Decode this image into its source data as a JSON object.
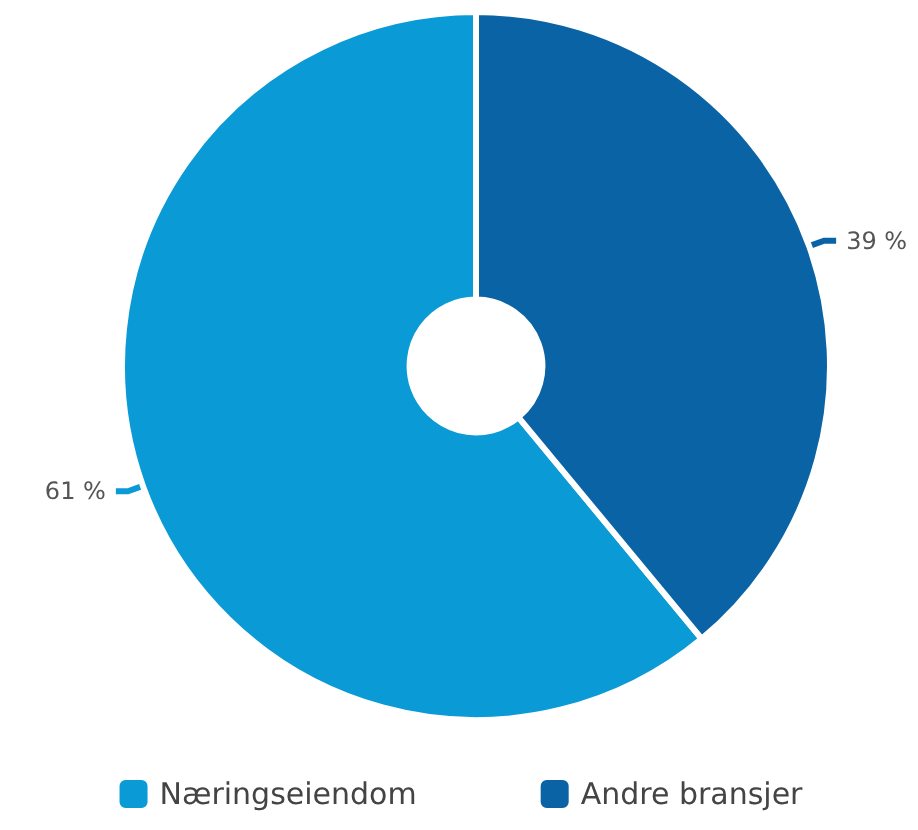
{
  "chart_data": {
    "type": "donut",
    "categories": [
      "Næringseiendom",
      "Andre bransjer"
    ],
    "values": [
      61,
      39
    ],
    "colors": [
      "#0a9ad6",
      "#0a63a4"
    ],
    "value_labels": [
      "61 %",
      "39 %"
    ],
    "legend": "bottom"
  }
}
